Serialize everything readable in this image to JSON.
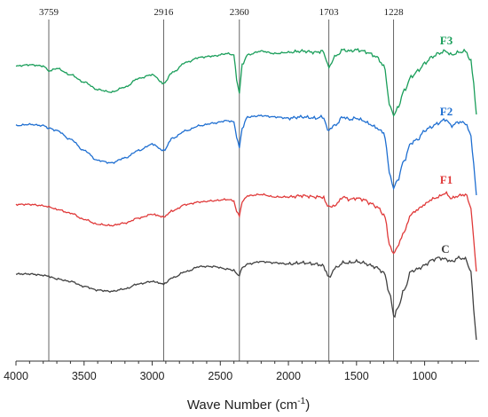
{
  "chart_data": {
    "type": "line",
    "title": "",
    "xlabel": "Wave Number (cm",
    "xlabel_sup": "-1",
    "xlabel_tail": ")",
    "ylabel": "",
    "xlim": [
      4000,
      600
    ],
    "x_reversed": true,
    "y_axis_shown": false,
    "grid": false,
    "xticks": [
      4000,
      3500,
      3000,
      2500,
      2000,
      1500,
      1000
    ],
    "xtick_labels": [
      "4000",
      "3500",
      "3000",
      "2500",
      "2000",
      "1500",
      "1000"
    ],
    "reference_lines": [
      {
        "x": 3759,
        "label": "3759"
      },
      {
        "x": 2916,
        "label": "2916"
      },
      {
        "x": 2360,
        "label": "2360"
      },
      {
        "x": 1703,
        "label": "1703"
      },
      {
        "x": 1228,
        "label": "1228"
      }
    ],
    "series": [
      {
        "name": "F3",
        "color": "#1a9e5a",
        "offset": 3,
        "points": [
          [
            4000,
            0.04
          ],
          [
            3900,
            0.05
          ],
          [
            3800,
            0.04
          ],
          [
            3759,
            0.0
          ],
          [
            3700,
            0.02
          ],
          [
            3600,
            -0.03
          ],
          [
            3500,
            -0.09
          ],
          [
            3400,
            -0.15
          ],
          [
            3300,
            -0.17
          ],
          [
            3200,
            -0.13
          ],
          [
            3100,
            -0.06
          ],
          [
            3000,
            -0.03
          ],
          [
            2916,
            -0.1
          ],
          [
            2850,
            -0.01
          ],
          [
            2750,
            0.07
          ],
          [
            2650,
            0.11
          ],
          [
            2550,
            0.12
          ],
          [
            2450,
            0.14
          ],
          [
            2400,
            0.13
          ],
          [
            2380,
            -0.07
          ],
          [
            2360,
            -0.18
          ],
          [
            2340,
            0.05
          ],
          [
            2300,
            0.13
          ],
          [
            2200,
            0.16
          ],
          [
            2100,
            0.14
          ],
          [
            2000,
            0.15
          ],
          [
            1900,
            0.16
          ],
          [
            1800,
            0.15
          ],
          [
            1750,
            0.16
          ],
          [
            1703,
            0.04
          ],
          [
            1650,
            0.12
          ],
          [
            1600,
            0.17
          ],
          [
            1550,
            0.16
          ],
          [
            1500,
            0.17
          ],
          [
            1450,
            0.16
          ],
          [
            1400,
            0.14
          ],
          [
            1350,
            0.11
          ],
          [
            1300,
            0.04
          ],
          [
            1250,
            -0.3
          ],
          [
            1228,
            -0.36
          ],
          [
            1200,
            -0.3
          ],
          [
            1150,
            -0.16
          ],
          [
            1100,
            -0.05
          ],
          [
            1050,
            0.0
          ],
          [
            1000,
            0.06
          ],
          [
            950,
            0.11
          ],
          [
            900,
            0.14
          ],
          [
            850,
            0.16
          ],
          [
            800,
            0.13
          ],
          [
            750,
            0.15
          ],
          [
            700,
            0.16
          ],
          [
            660,
            0.08
          ],
          [
            640,
            -0.1
          ],
          [
            620,
            -0.35
          ]
        ]
      },
      {
        "name": "F2",
        "color": "#1f6fd1",
        "offset": 2,
        "points": [
          [
            4000,
            0.06
          ],
          [
            3900,
            0.07
          ],
          [
            3800,
            0.06
          ],
          [
            3759,
            0.04
          ],
          [
            3700,
            0.02
          ],
          [
            3600,
            -0.05
          ],
          [
            3500,
            -0.14
          ],
          [
            3400,
            -0.22
          ],
          [
            3300,
            -0.24
          ],
          [
            3200,
            -0.2
          ],
          [
            3100,
            -0.14
          ],
          [
            3000,
            -0.09
          ],
          [
            2916,
            -0.14
          ],
          [
            2850,
            -0.04
          ],
          [
            2750,
            0.02
          ],
          [
            2650,
            0.06
          ],
          [
            2550,
            0.08
          ],
          [
            2450,
            0.1
          ],
          [
            2400,
            0.09
          ],
          [
            2380,
            -0.03
          ],
          [
            2360,
            -0.12
          ],
          [
            2340,
            0.04
          ],
          [
            2300,
            0.13
          ],
          [
            2200,
            0.14
          ],
          [
            2100,
            0.13
          ],
          [
            2000,
            0.12
          ],
          [
            1900,
            0.13
          ],
          [
            1800,
            0.12
          ],
          [
            1750,
            0.13
          ],
          [
            1703,
            0.02
          ],
          [
            1650,
            0.07
          ],
          [
            1600,
            0.13
          ],
          [
            1550,
            0.11
          ],
          [
            1500,
            0.12
          ],
          [
            1450,
            0.1
          ],
          [
            1400,
            0.07
          ],
          [
            1350,
            0.04
          ],
          [
            1300,
            0.0
          ],
          [
            1250,
            -0.35
          ],
          [
            1228,
            -0.44
          ],
          [
            1200,
            -0.38
          ],
          [
            1150,
            -0.22
          ],
          [
            1100,
            -0.08
          ],
          [
            1050,
            -0.05
          ],
          [
            1000,
            0.02
          ],
          [
            950,
            0.05
          ],
          [
            900,
            0.08
          ],
          [
            850,
            0.11
          ],
          [
            800,
            0.06
          ],
          [
            750,
            0.09
          ],
          [
            700,
            0.08
          ],
          [
            660,
            -0.02
          ],
          [
            640,
            -0.25
          ],
          [
            620,
            -0.5
          ]
        ]
      },
      {
        "name": "F1",
        "color": "#e03a3a",
        "offset": 1,
        "points": [
          [
            4000,
            0.04
          ],
          [
            3900,
            0.04
          ],
          [
            3800,
            0.03
          ],
          [
            3759,
            0.02
          ],
          [
            3700,
            0.0
          ],
          [
            3600,
            -0.03
          ],
          [
            3500,
            -0.08
          ],
          [
            3400,
            -0.12
          ],
          [
            3300,
            -0.13
          ],
          [
            3200,
            -0.11
          ],
          [
            3100,
            -0.07
          ],
          [
            3000,
            -0.04
          ],
          [
            2916,
            -0.06
          ],
          [
            2850,
            -0.01
          ],
          [
            2750,
            0.04
          ],
          [
            2650,
            0.06
          ],
          [
            2550,
            0.07
          ],
          [
            2450,
            0.08
          ],
          [
            2400,
            0.07
          ],
          [
            2380,
            -0.02
          ],
          [
            2360,
            -0.05
          ],
          [
            2340,
            0.06
          ],
          [
            2300,
            0.11
          ],
          [
            2200,
            0.12
          ],
          [
            2100,
            0.1
          ],
          [
            2000,
            0.1
          ],
          [
            1900,
            0.11
          ],
          [
            1800,
            0.1
          ],
          [
            1750,
            0.1
          ],
          [
            1703,
            0.02
          ],
          [
            1650,
            0.04
          ],
          [
            1600,
            0.1
          ],
          [
            1550,
            0.08
          ],
          [
            1500,
            0.09
          ],
          [
            1450,
            0.08
          ],
          [
            1400,
            0.05
          ],
          [
            1350,
            0.02
          ],
          [
            1300,
            -0.04
          ],
          [
            1250,
            -0.3
          ],
          [
            1228,
            -0.36
          ],
          [
            1200,
            -0.3
          ],
          [
            1150,
            -0.18
          ],
          [
            1100,
            -0.04
          ],
          [
            1050,
            0.0
          ],
          [
            1000,
            0.04
          ],
          [
            950,
            0.08
          ],
          [
            900,
            0.1
          ],
          [
            850,
            0.13
          ],
          [
            800,
            0.09
          ],
          [
            750,
            0.11
          ],
          [
            700,
            0.12
          ],
          [
            660,
            0.02
          ],
          [
            640,
            -0.25
          ],
          [
            620,
            -0.5
          ]
        ]
      },
      {
        "name": "C",
        "color": "#404040",
        "offset": 0,
        "points": [
          [
            4000,
            0.03
          ],
          [
            3900,
            0.03
          ],
          [
            3800,
            0.02
          ],
          [
            3759,
            0.01
          ],
          [
            3700,
            -0.01
          ],
          [
            3600,
            -0.03
          ],
          [
            3500,
            -0.07
          ],
          [
            3400,
            -0.1
          ],
          [
            3300,
            -0.11
          ],
          [
            3200,
            -0.09
          ],
          [
            3100,
            -0.05
          ],
          [
            3000,
            -0.03
          ],
          [
            2916,
            -0.05
          ],
          [
            2850,
            0.0
          ],
          [
            2750,
            0.05
          ],
          [
            2650,
            0.09
          ],
          [
            2550,
            0.09
          ],
          [
            2450,
            0.07
          ],
          [
            2400,
            0.06
          ],
          [
            2380,
            0.03
          ],
          [
            2360,
            0.02
          ],
          [
            2340,
            0.08
          ],
          [
            2300,
            0.11
          ],
          [
            2200,
            0.13
          ],
          [
            2100,
            0.12
          ],
          [
            2000,
            0.11
          ],
          [
            1900,
            0.12
          ],
          [
            1800,
            0.11
          ],
          [
            1750,
            0.1
          ],
          [
            1703,
            0.01
          ],
          [
            1650,
            0.08
          ],
          [
            1600,
            0.12
          ],
          [
            1550,
            0.12
          ],
          [
            1500,
            0.13
          ],
          [
            1450,
            0.12
          ],
          [
            1400,
            0.1
          ],
          [
            1350,
            0.08
          ],
          [
            1300,
            0.04
          ],
          [
            1250,
            -0.15
          ],
          [
            1228,
            -0.32
          ],
          [
            1200,
            -0.25
          ],
          [
            1150,
            -0.1
          ],
          [
            1100,
            0.05
          ],
          [
            1050,
            0.07
          ],
          [
            1000,
            0.1
          ],
          [
            950,
            0.14
          ],
          [
            900,
            0.16
          ],
          [
            850,
            0.15
          ],
          [
            800,
            0.13
          ],
          [
            750,
            0.16
          ],
          [
            700,
            0.15
          ],
          [
            660,
            0.05
          ],
          [
            640,
            -0.25
          ],
          [
            620,
            -0.5
          ]
        ]
      }
    ]
  }
}
